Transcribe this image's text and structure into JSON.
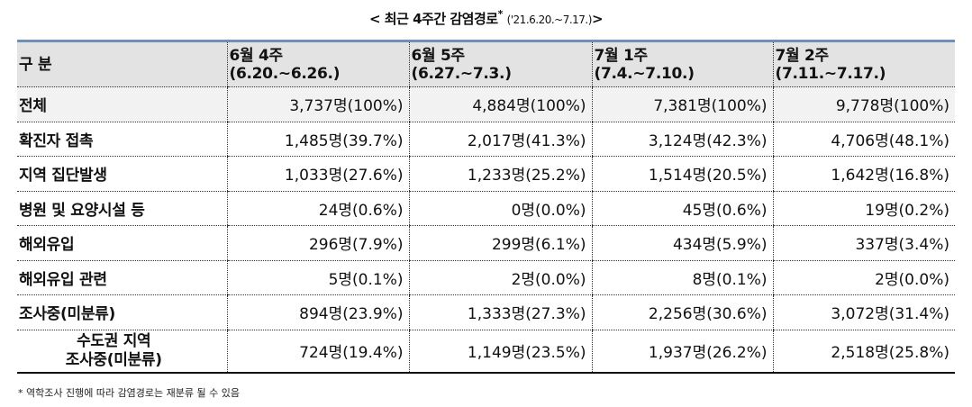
{
  "title": {
    "main": "< 최근 4주간 감염경로",
    "star": "*",
    "period": "('21.6.20.~7.17.)",
    "close": ">"
  },
  "table": {
    "corner_label": "구 분",
    "columns": [
      {
        "week": "6월 4주",
        "range": "(6.20.~6.26.)"
      },
      {
        "week": "6월 5주",
        "range": "(6.27.~7.3.)"
      },
      {
        "week": "7월 1주",
        "range": "(7.4.~7.10.)"
      },
      {
        "week": "7월 2주",
        "range": "(7.11.~7.17.)"
      }
    ],
    "rows": [
      {
        "label": "전체",
        "cells": [
          "3,737명(100%)",
          "4,884명(100%)",
          "7,381명(100%)",
          "9,778명(100%)"
        ]
      },
      {
        "label": "확진자 접촉",
        "cells": [
          "1,485명(39.7%)",
          "2,017명(41.3%)",
          "3,124명(42.3%)",
          "4,706명(48.1%)"
        ]
      },
      {
        "label": "지역 집단발생",
        "cells": [
          "1,033명(27.6%)",
          "1,233명(25.2%)",
          "1,514명(20.5%)",
          "1,642명(16.8%)"
        ]
      },
      {
        "label": "병원 및 요양시설 등",
        "cells": [
          "24명(0.6%)",
          "0명(0.0%)",
          "45명(0.6%)",
          "19명(0.2%)"
        ]
      },
      {
        "label": "해외유입",
        "cells": [
          "296명(7.9%)",
          "299명(6.1%)",
          "434명(5.9%)",
          "337명(3.4%)"
        ]
      },
      {
        "label": "해외유입 관련",
        "cells": [
          "5명(0.1%)",
          "2명(0.0%)",
          "8명(0.1%)",
          "2명(0.0%)"
        ]
      },
      {
        "label": "조사중(미분류)",
        "cells": [
          "894명(23.9%)",
          "1,333명(27.3%)",
          "2,256명(30.6%)",
          "3,072명(31.4%)"
        ]
      }
    ],
    "sub_row": {
      "label_line1": "수도권 지역",
      "label_line2": "조사중(미분류)",
      "cells": [
        "724명(19.4%)",
        "1,149명(23.5%)",
        "1,937명(26.2%)",
        "2,518명(25.8%)"
      ]
    }
  },
  "footnote": "* 역학조사 진행에 따라 감염경로는 재분류 될 수 있음"
}
